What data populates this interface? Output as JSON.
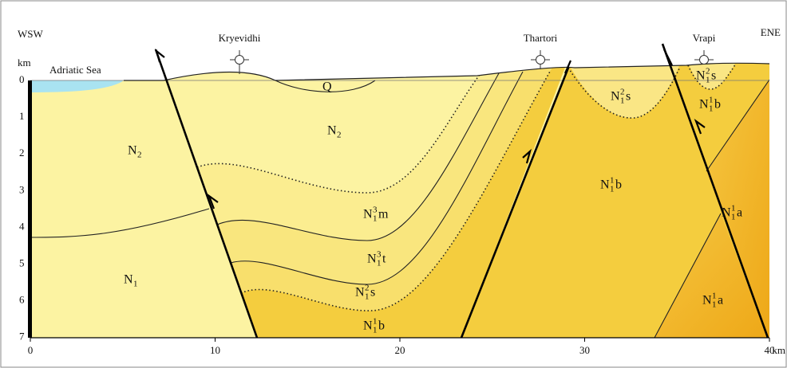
{
  "header": {
    "left": "WSW",
    "right": "ENE"
  },
  "axis": {
    "unit": "km",
    "depth_ticks": [
      "0",
      "1",
      "2",
      "3",
      "4",
      "5",
      "6",
      "7"
    ],
    "distance_ticks": [
      "0",
      "10",
      "20",
      "30",
      "40"
    ],
    "distance_unit": "km"
  },
  "sea": "Adriatic Sea",
  "wells": [
    "Kryevidhi",
    "Thartori",
    "Vrapi"
  ],
  "units": [
    {
      "base": "Q"
    },
    {
      "base": "N",
      "sub": "2"
    },
    {
      "base": "N",
      "sub": "2"
    },
    {
      "base": "N",
      "sub": "1"
    },
    {
      "base": "N",
      "sub": "1",
      "sup": "3",
      "suffix": "m"
    },
    {
      "base": "N",
      "sub": "1",
      "sup": "3",
      "suffix": "t"
    },
    {
      "base": "N",
      "sub": "1",
      "sup": "2",
      "suffix": "s"
    },
    {
      "base": "N",
      "sub": "1",
      "sup": "1",
      "suffix": "b"
    },
    {
      "base": "N",
      "sub": "1",
      "sup": "2",
      "suffix": "s"
    },
    {
      "base": "N",
      "sub": "1",
      "sup": "1",
      "suffix": "b"
    },
    {
      "base": "N",
      "sub": "1",
      "sup": "2",
      "suffix": "s"
    },
    {
      "base": "N",
      "sub": "1",
      "sup": "1",
      "suffix": "b"
    },
    {
      "base": "N",
      "sub": "1",
      "sup": "1",
      "suffix": "a"
    },
    {
      "base": "N",
      "sub": "1",
      "sup": "1",
      "suffix": "a"
    }
  ]
}
